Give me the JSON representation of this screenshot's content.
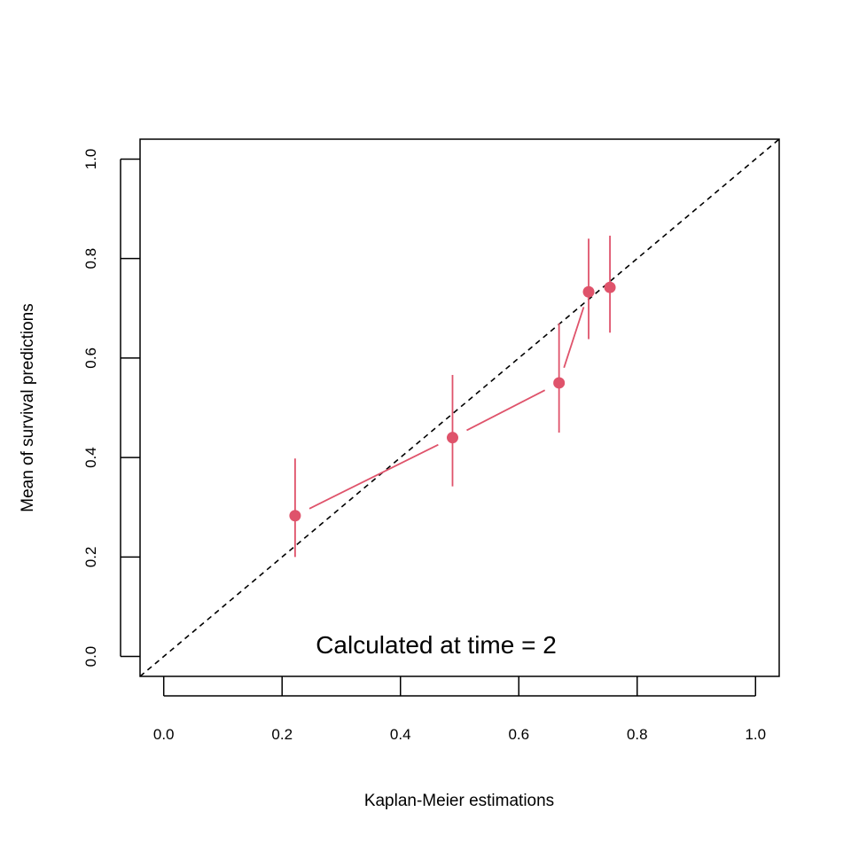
{
  "chart_data": {
    "type": "scatter",
    "title": "",
    "xlabel": "Kaplan-Meier estimations",
    "ylabel": "Mean of survival predictions",
    "xlim": [
      -0.04,
      1.04
    ],
    "ylim": [
      -0.04,
      1.04
    ],
    "x_ticks": [
      "0.0",
      "0.2",
      "0.4",
      "0.6",
      "0.8",
      "1.0"
    ],
    "y_ticks": [
      "0.0",
      "0.2",
      "0.4",
      "0.6",
      "0.8",
      "1.0"
    ],
    "annotation": "Calculated at time = 2",
    "grid": false,
    "reference_line": {
      "from": [
        -0.04,
        -0.04
      ],
      "to": [
        1.04,
        1.04
      ],
      "style": "dashed",
      "color": "#000000"
    },
    "series": [
      {
        "color": "#DF536B",
        "points": [
          {
            "x": 0.222,
            "y": 0.283,
            "lower": 0.2,
            "upper": 0.398
          },
          {
            "x": 0.488,
            "y": 0.44,
            "lower": 0.342,
            "upper": 0.566
          },
          {
            "x": 0.668,
            "y": 0.55,
            "lower": 0.45,
            "upper": 0.67
          },
          {
            "x": 0.718,
            "y": 0.733,
            "lower": 0.638,
            "upper": 0.84
          },
          {
            "x": 0.754,
            "y": 0.742,
            "lower": 0.651,
            "upper": 0.846
          }
        ]
      }
    ]
  }
}
